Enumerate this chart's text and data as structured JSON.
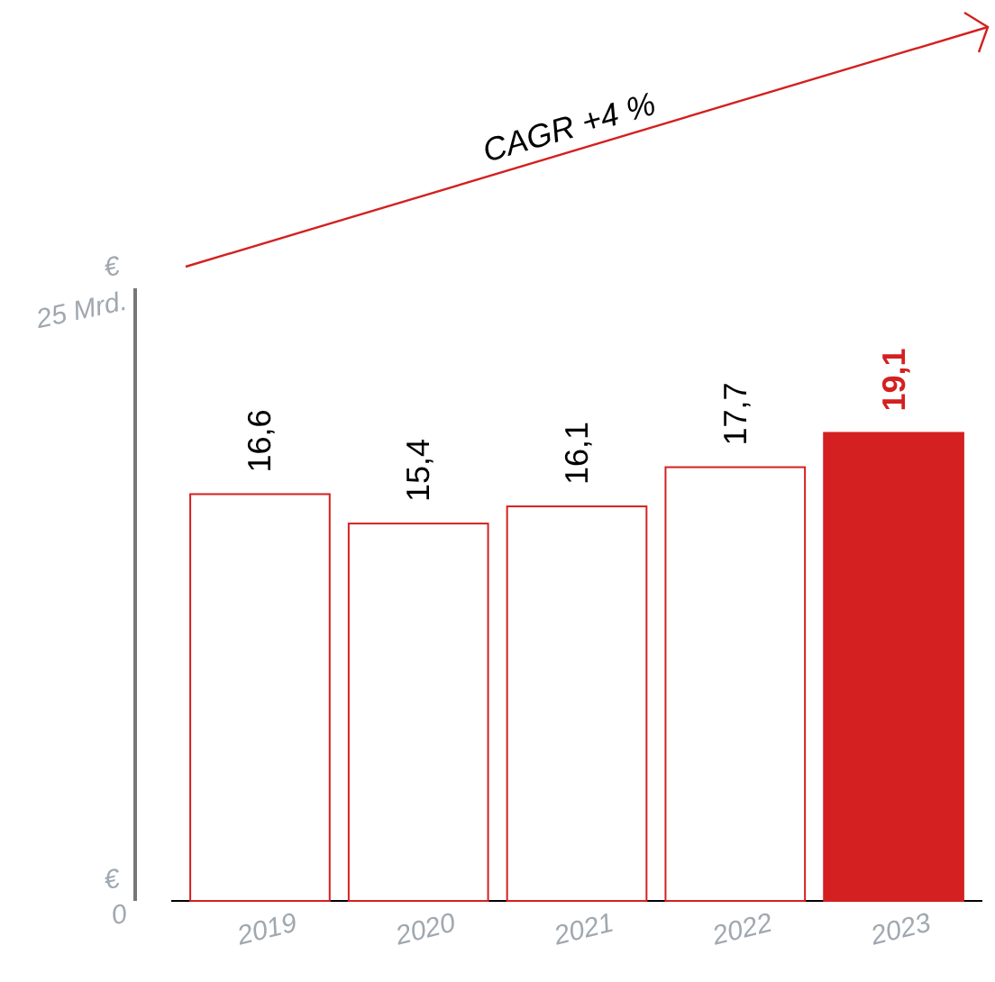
{
  "chart_data": {
    "type": "bar",
    "categories": [
      "2019",
      "2020",
      "2021",
      "2022",
      "2023"
    ],
    "values": [
      16.6,
      15.4,
      16.1,
      17.7,
      19.1
    ],
    "value_labels": [
      "16,6",
      "15,4",
      "16,1",
      "17,7",
      "19,1"
    ],
    "colors": [
      "#ffffff",
      "#ffffff",
      "#ffffff",
      "#ffffff",
      "#d42020"
    ],
    "ylim": [
      0,
      25
    ],
    "yticks": [
      {
        "value": 0,
        "label": "€ 0"
      },
      {
        "value": 25,
        "label": "€ 25 Mrd."
      }
    ],
    "annotations": [
      "CAGR +4 %"
    ],
    "grid": false
  }
}
